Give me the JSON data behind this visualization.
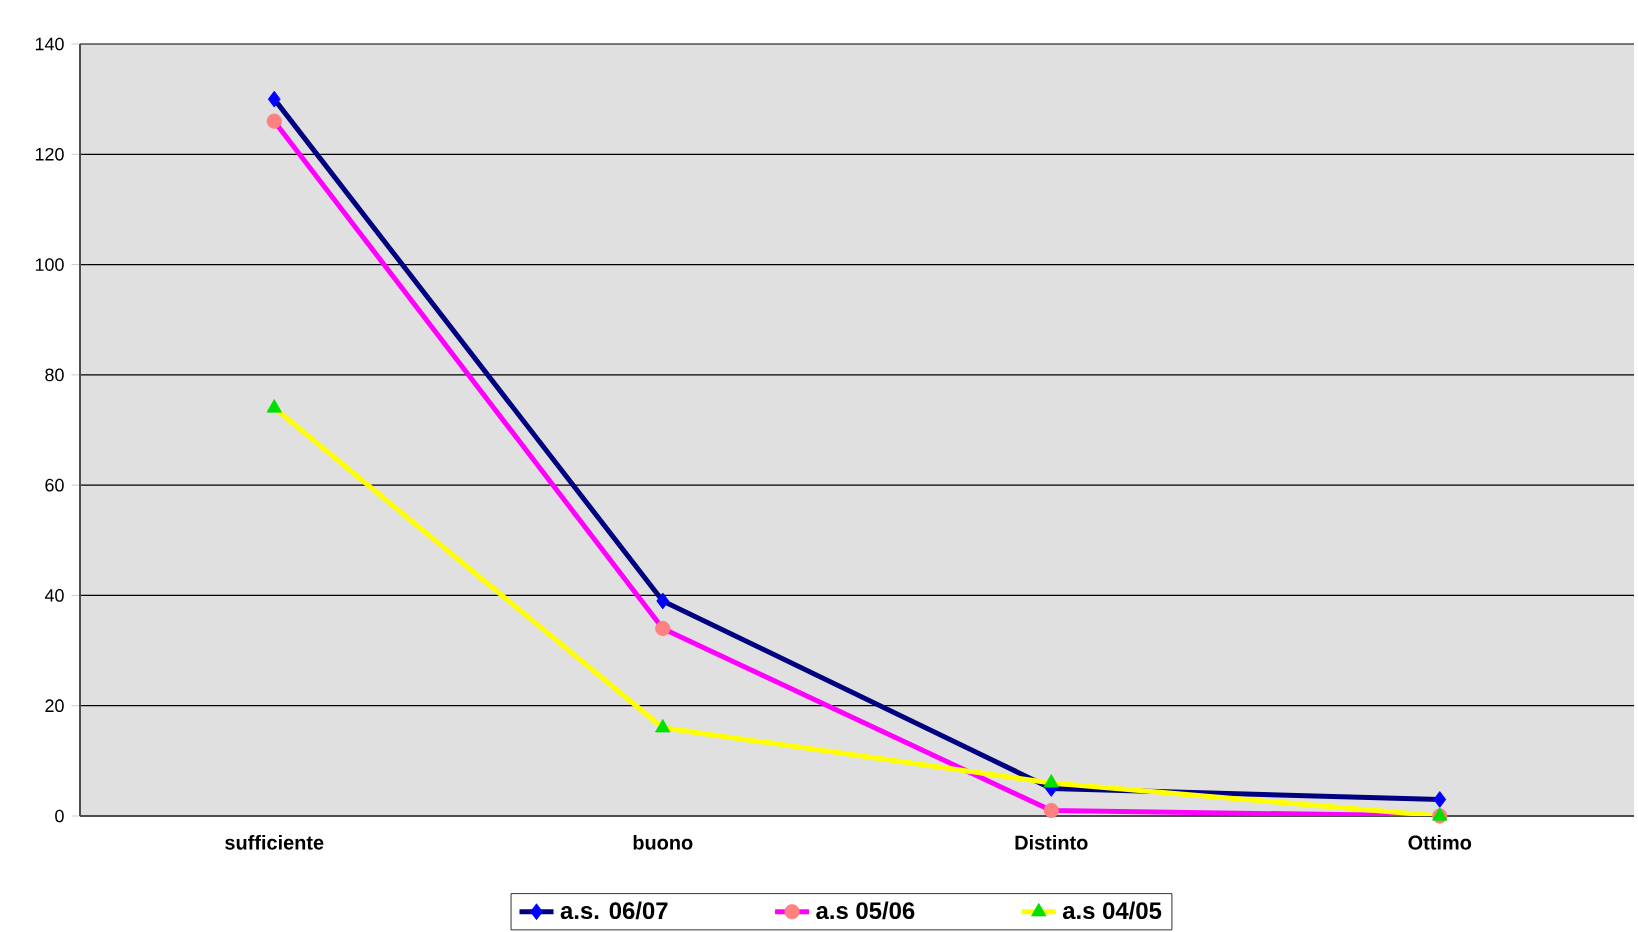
{
  "chart_data": {
    "type": "line",
    "categories": [
      "sufficiente",
      "buono",
      "Distinto",
      "Ottimo"
    ],
    "series": [
      {
        "name": "a.s. 06/07",
        "color": "#000080",
        "marker": "diamond",
        "values": [
          130,
          39,
          5,
          3
        ]
      },
      {
        "name": "a.s 05/06",
        "color": "#ff00ff",
        "marker": "circle",
        "values": [
          126,
          34,
          1,
          0
        ]
      },
      {
        "name": "a.s 04/05",
        "color": "#ffff00",
        "marker": "triangle",
        "values": [
          74,
          16,
          6,
          0
        ]
      }
    ],
    "ylim": [
      0,
      140
    ],
    "yticks": [
      0,
      20,
      40,
      60,
      80,
      100,
      120,
      140
    ],
    "grid": "y",
    "legend": "bottom",
    "line_style": "solid"
  }
}
